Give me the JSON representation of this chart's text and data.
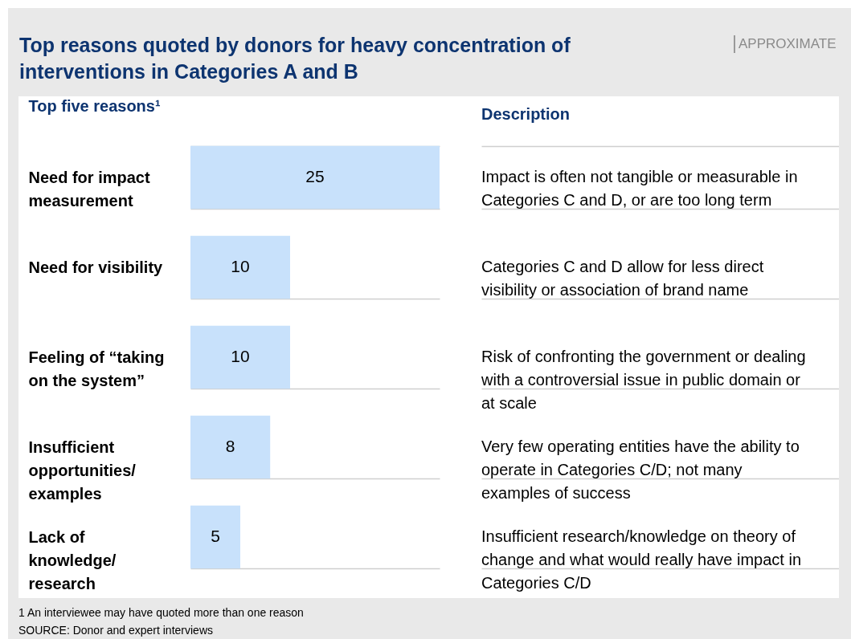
{
  "chart_data": {
    "type": "bar",
    "orientation": "horizontal",
    "title": "Top reasons quoted by donors for heavy concentration of interventions in Categories A and B",
    "subtitle": "APPROXIMATE",
    "ylabel": "Top five reasons¹",
    "categories": [
      "Need for impact measurement",
      "Need for visibility",
      "Feeling of “taking on the system”",
      "Insufficient opportunities/examples",
      "Lack of knowledge/research"
    ],
    "values": [
      25,
      10,
      10,
      8,
      5
    ],
    "color": "#c8e1fb",
    "data_labels": true,
    "grid": true,
    "annotations": [
      "Description",
      "Impact is often not tangible or measurable in Categories C and D, or are too long term",
      "Categories C and D allow for less direct visibility or association of brand name",
      "Risk of confronting the government or dealing with a controversial issue in public domain or at scale",
      "Very few operating entities have the ability to operate in Categories C/D; not many examples of success",
      "Insufficient research/knowledge on theory of change and what would really have impact in Categories C/D",
      "1 An interviewee may have quoted more than one reason",
      "SOURCE: Donor and expert interviews"
    ]
  }
}
